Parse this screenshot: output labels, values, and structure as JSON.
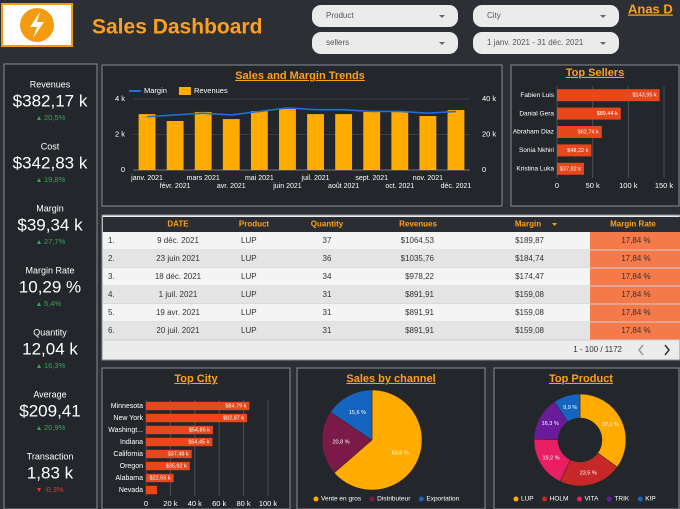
{
  "header": {
    "title": "Sales Dashboard",
    "user": "Anas D"
  },
  "filters": [
    "Product",
    "City",
    "sellers",
    "1 janv. 2021 - 31 déc. 2021"
  ],
  "kpis": [
    {
      "label": "Revenues",
      "value": "$382,17 k",
      "change": "20,5%"
    },
    {
      "label": "Cost",
      "value": "$342,83 k",
      "change": "19,8%"
    },
    {
      "label": "Margin",
      "value": "$39,34 k",
      "change": "27,7%"
    },
    {
      "label": "Margin Rate",
      "value": "10,29 %",
      "change": "5,4%"
    },
    {
      "label": "Quantity",
      "value": "12,04 k",
      "change": "16,3%"
    },
    {
      "label": "Average",
      "value": "$209,41",
      "change": "20,9%"
    },
    {
      "label": "Transaction",
      "value": "1,83 k",
      "change": "-0,3%"
    }
  ],
  "table": {
    "columns": [
      "DATE",
      "Product",
      "Quantity",
      "Revenues",
      "Margin",
      "Margin Rate"
    ],
    "rows": [
      [
        "1.",
        "9 déc. 2021",
        "LUP",
        "37",
        "$1064,53",
        "$189,87",
        "17,84 %"
      ],
      [
        "2.",
        "23 juin 2021",
        "LUP",
        "36",
        "$1035,76",
        "$184,74",
        "17,84 %"
      ],
      [
        "3.",
        "18 déc. 2021",
        "LUP",
        "34",
        "$978,22",
        "$174,47",
        "17,84 %"
      ],
      [
        "4.",
        "1 juil. 2021",
        "LUP",
        "31",
        "$891,91",
        "$159,08",
        "17,84 %"
      ],
      [
        "5.",
        "19 avr. 2021",
        "LUP",
        "31",
        "$891,91",
        "$159,08",
        "17,84 %"
      ],
      [
        "6.",
        "20 juil. 2021",
        "LUP",
        "31",
        "$891,91",
        "$159,08",
        "17,84 %"
      ]
    ],
    "pagination": "1 - 100 / 1172"
  },
  "chart_data": [
    {
      "type": "combo",
      "title": "Sales and Margin Trends",
      "categories": [
        "janv. 2021",
        "févr. 2021",
        "mars 2021",
        "avr. 2021",
        "mai 2021",
        "juin 2021",
        "juil. 2021",
        "août 2021",
        "sept. 2021",
        "oct. 2021",
        "nov. 2021",
        "déc. 2021"
      ],
      "series": [
        {
          "name": "Margin",
          "kind": "line",
          "color": "#1e6fd9",
          "values": [
            3000,
            3100,
            3200,
            3100,
            3300,
            3500,
            3400,
            3400,
            3300,
            3300,
            3200,
            3300
          ]
        },
        {
          "name": "Revenues",
          "kind": "bar",
          "axis": "y2",
          "color": "#ffab00",
          "values": [
            31500,
            27600,
            32700,
            28700,
            33200,
            34400,
            31500,
            31500,
            32700,
            33200,
            30400,
            33800
          ]
        }
      ],
      "ylim": [
        0,
        4000
      ],
      "yticks": [
        0,
        {
          "value": 2000,
          "label": "2 k"
        },
        {
          "value": 4000,
          "label": "4 k"
        }
      ],
      "y2lim": [
        0,
        40000
      ],
      "y2ticks": [
        0,
        {
          "value": 20000,
          "label": "20 k"
        },
        {
          "value": 40000,
          "label": "40 k"
        }
      ]
    },
    {
      "type": "hbar",
      "title": "Top Sellers",
      "categories": [
        "Fabien Luis",
        "Danial Gera",
        "Abraham Diaz",
        "Sonia Nkhiri",
        "Kristina Luka"
      ],
      "values": [
        143950,
        89440,
        62740,
        48220,
        37820
      ],
      "value_labels": [
        "$143,95 k",
        "$89,44 k",
        "$62,74 k",
        "$48,22 k",
        "$37,82 k"
      ],
      "color": "#e8471c",
      "xlim": [
        0,
        150000
      ],
      "xticks": [
        0,
        {
          "value": 50000,
          "label": "50 k"
        },
        {
          "value": 100000,
          "label": "100 k"
        },
        {
          "value": 150000,
          "label": "150 k"
        }
      ],
      "grid": true
    },
    {
      "type": "hbar",
      "title": "Top City",
      "categories": [
        "Minnesota",
        "New York",
        "Washingt...",
        "Indiana",
        "California",
        "Oregon",
        "Alabama",
        "Nevada"
      ],
      "values": [
        84790,
        82870,
        54860,
        54450,
        37480,
        35920,
        22590,
        9000
      ],
      "value_labels": [
        "$84,79 k",
        "$82,87 k",
        "$54,86 k",
        "$54,45 k",
        "$37,48 k",
        "$35,92 k",
        "$22,59 k",
        null
      ],
      "color": "#e8471c",
      "xlim": [
        0,
        100000
      ],
      "xticks": [
        0,
        {
          "value": 20000,
          "label": "20 k"
        },
        {
          "value": 40000,
          "label": "40 k"
        },
        {
          "value": 60000,
          "label": "60 k"
        },
        {
          "value": 80000,
          "label": "80 k"
        },
        {
          "value": 100000,
          "label": "100 k"
        }
      ],
      "grid": true
    },
    {
      "type": "pie",
      "title": "Sales by channel",
      "categories": [
        "Vente en gros",
        "Distributeur",
        "Exportation"
      ],
      "values": [
        63.6,
        20.8,
        15.6
      ],
      "value_labels": [
        "63,6 %",
        "20,8 %",
        "15,6 %"
      ],
      "colors": [
        "#ffab00",
        "#7b1a48",
        "#1565c0"
      ]
    },
    {
      "type": "donut",
      "title": "Top Product",
      "categories": [
        "LUP",
        "HOLM",
        "VITA",
        "TRIK",
        "KIP"
      ],
      "values": [
        37.1,
        23.5,
        19.2,
        16.3,
        9.9
      ],
      "value_labels": [
        "37,1 %",
        "23,5 %",
        "19,2 %",
        "16,3 %",
        "9,9 %"
      ],
      "colors": [
        "#ffab00",
        "#c62828",
        "#e91e63",
        "#6a1b9a",
        "#1565c0"
      ]
    }
  ]
}
